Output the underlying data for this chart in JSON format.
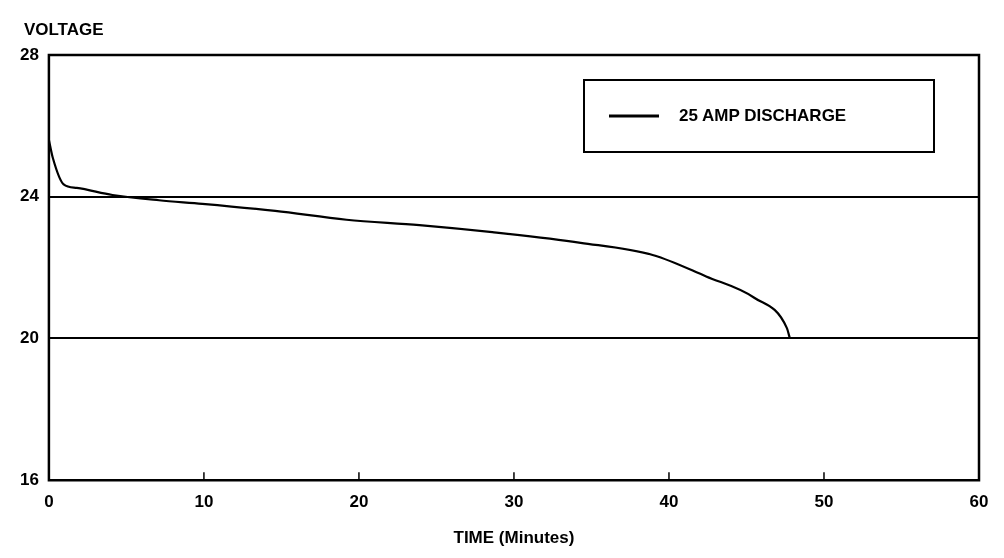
{
  "chart_data": {
    "type": "line",
    "ylabel": "VOLTAGE",
    "xlabel": "TIME (Minutes)",
    "x": [
      0,
      0.25,
      0.95,
      1.8,
      4.1,
      7.1,
      9.9,
      14.6,
      19.2,
      23.9,
      28.6,
      34.3,
      39,
      42.4,
      45.5,
      47.6,
      47.8
    ],
    "series": [
      {
        "name": "25 AMP DISCHARGE",
        "color": "#000000",
        "values": [
          25.6,
          25.1,
          24.35,
          24.25,
          24.05,
          23.9,
          23.8,
          23.6,
          23.35,
          23.2,
          23,
          22.7,
          22.35,
          21.75,
          21.15,
          20.3,
          20
        ]
      }
    ],
    "xlim": [
      0,
      60
    ],
    "xticks": [
      0,
      10,
      20,
      30,
      40,
      50,
      60
    ],
    "ylim": [
      16,
      28
    ],
    "yticks": [
      16,
      20,
      24,
      28
    ],
    "grid": "y",
    "legend": "top right",
    "marker": "none",
    "line_style": "solid"
  }
}
